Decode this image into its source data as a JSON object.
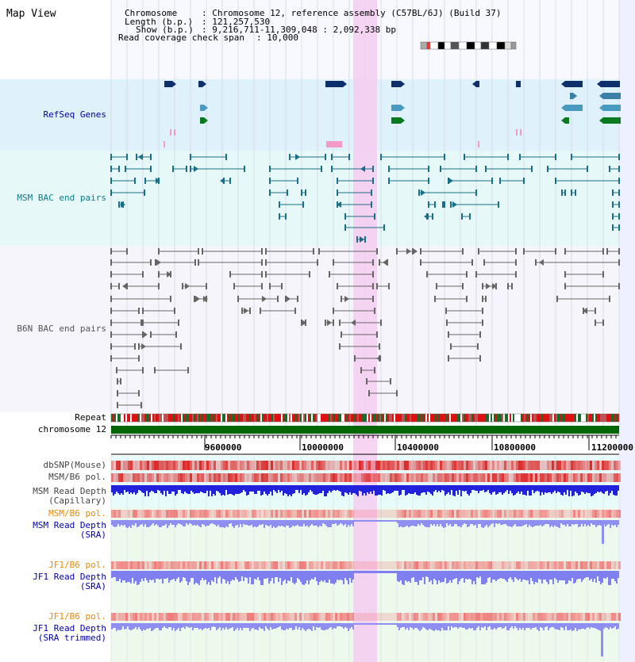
{
  "map_view": {
    "title": "Map View",
    "info": {
      "chromosome_key": "Chromosome",
      "chromosome_value": ": Chromosome 12, reference assembly (C57BL/6J) (Build 37)",
      "length_key": "Length (b.p.)",
      "length_value": ": 121,257,530",
      "show_key": "Show (b.p.)",
      "show_value": ": 9,216,711-11,309,048 : 2,092,338 bp",
      "span_key": "Read coverage check span",
      "span_value": ": 10,000"
    }
  },
  "tracks": {
    "refseq": "RefSeq Genes",
    "msm_bac": "MSM BAC end pairs",
    "b6n_bac": "B6N BAC end pairs",
    "repeat": "Repeat",
    "chromosome": "chromosome 12",
    "dbsnp": "dbSNP(Mouse)",
    "msm_b6_pol_cap": "MSM/B6 pol.",
    "msm_depth_cap_1": "MSM Read Depth",
    "msm_depth_cap_2": "(Capillary)",
    "msm_b6_pol_sra": "MSM/B6 pol.",
    "msm_depth_sra_1": "MSM Read Depth",
    "msm_depth_sra_2": "(SRA)",
    "jf1_b6_pol_sra": "JF1/B6 pol.",
    "jf1_depth_sra_1": "JF1 Read Depth",
    "jf1_depth_sra_2": "(SRA)",
    "jf1_b6_pol_trim": "JF1/B6 pol.",
    "jf1_depth_trim_1": "JF1 Read Depth",
    "jf1_depth_trim_2": "(SRA trimmed)"
  },
  "axis": {
    "ticks": [
      "9600000",
      "10000000",
      "10400000",
      "10800000",
      "11200000"
    ]
  },
  "colors": {
    "refseq_bg": "#dff1fb",
    "msm_bg": "#e6f8f8",
    "b6n_bg": "#f5f5fb",
    "highlight": "#f4cdf0",
    "refseq_label": "#000099",
    "msm_label": "#0f7a8a",
    "b6n_label": "#555555",
    "orange_label": "#ee8800",
    "blue_label": "#0000aa",
    "chromosome_bar": "#006600"
  }
}
